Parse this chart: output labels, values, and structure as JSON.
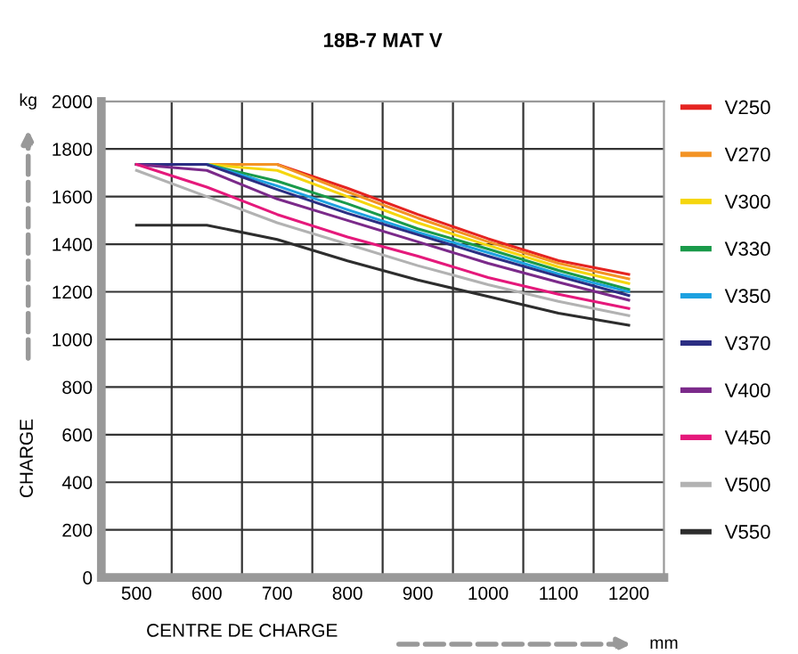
{
  "chart_data": {
    "type": "line",
    "title": "18B-7 MAT V",
    "xlabel": "CENTRE DE CHARGE",
    "ylabel": "CHARGE",
    "annotations": [
      "kg",
      "mm"
    ],
    "x": [
      500,
      600,
      700,
      800,
      900,
      1000,
      1100,
      1200
    ],
    "xlim": [
      450,
      1250
    ],
    "xticks": [
      500,
      {
        "value": 550,
        "label": null
      },
      600,
      {
        "value": 650,
        "label": null
      },
      700,
      {
        "value": 750,
        "label": null
      },
      800,
      {
        "value": 850,
        "label": null
      },
      900,
      {
        "value": 950,
        "label": null
      },
      1000,
      {
        "value": 1050,
        "label": null
      },
      1100,
      {
        "value": 1150,
        "label": null
      },
      1200
    ],
    "ylim": [
      0,
      2000
    ],
    "yticks": [
      0,
      200,
      400,
      600,
      800,
      1000,
      1200,
      1400,
      1600,
      1800,
      2000
    ],
    "grid": true,
    "legend": "right",
    "marker": "none",
    "line_style": "solid",
    "series": [
      {
        "name": "V250",
        "color": "#e52421",
        "values": [
          1735,
          1735,
          1735,
          1635,
          1525,
          1423,
          1331,
          1273
        ]
      },
      {
        "name": "V270",
        "color": "#f39325",
        "values": [
          1735,
          1735,
          1735,
          1620,
          1510,
          1410,
          1320,
          1255
        ]
      },
      {
        "name": "V300",
        "color": "#f5d60f",
        "values": [
          1735,
          1735,
          1710,
          1600,
          1490,
          1395,
          1305,
          1235
        ]
      },
      {
        "name": "V330",
        "color": "#1a9a4a",
        "values": [
          1735,
          1735,
          1665,
          1570,
          1465,
          1380,
          1290,
          1210
        ]
      },
      {
        "name": "V350",
        "color": "#1da1e0",
        "values": [
          1735,
          1735,
          1645,
          1545,
          1450,
          1365,
          1275,
          1200
        ]
      },
      {
        "name": "V370",
        "color": "#2b2e83",
        "values": [
          1735,
          1735,
          1630,
          1530,
          1440,
          1350,
          1265,
          1185
        ]
      },
      {
        "name": "V400",
        "color": "#7b2a8a",
        "values": [
          1735,
          1710,
          1590,
          1500,
          1410,
          1320,
          1240,
          1165
        ]
      },
      {
        "name": "V450",
        "color": "#e5197b",
        "values": [
          1735,
          1640,
          1525,
          1430,
          1350,
          1260,
          1190,
          1130
        ]
      },
      {
        "name": "V500",
        "color": "#b2b2b2",
        "values": [
          1710,
          1600,
          1490,
          1400,
          1310,
          1230,
          1160,
          1100
        ]
      },
      {
        "name": "V550",
        "color": "#2d2d2d",
        "values": [
          1480,
          1480,
          1420,
          1330,
          1250,
          1180,
          1110,
          1060
        ]
      }
    ]
  }
}
